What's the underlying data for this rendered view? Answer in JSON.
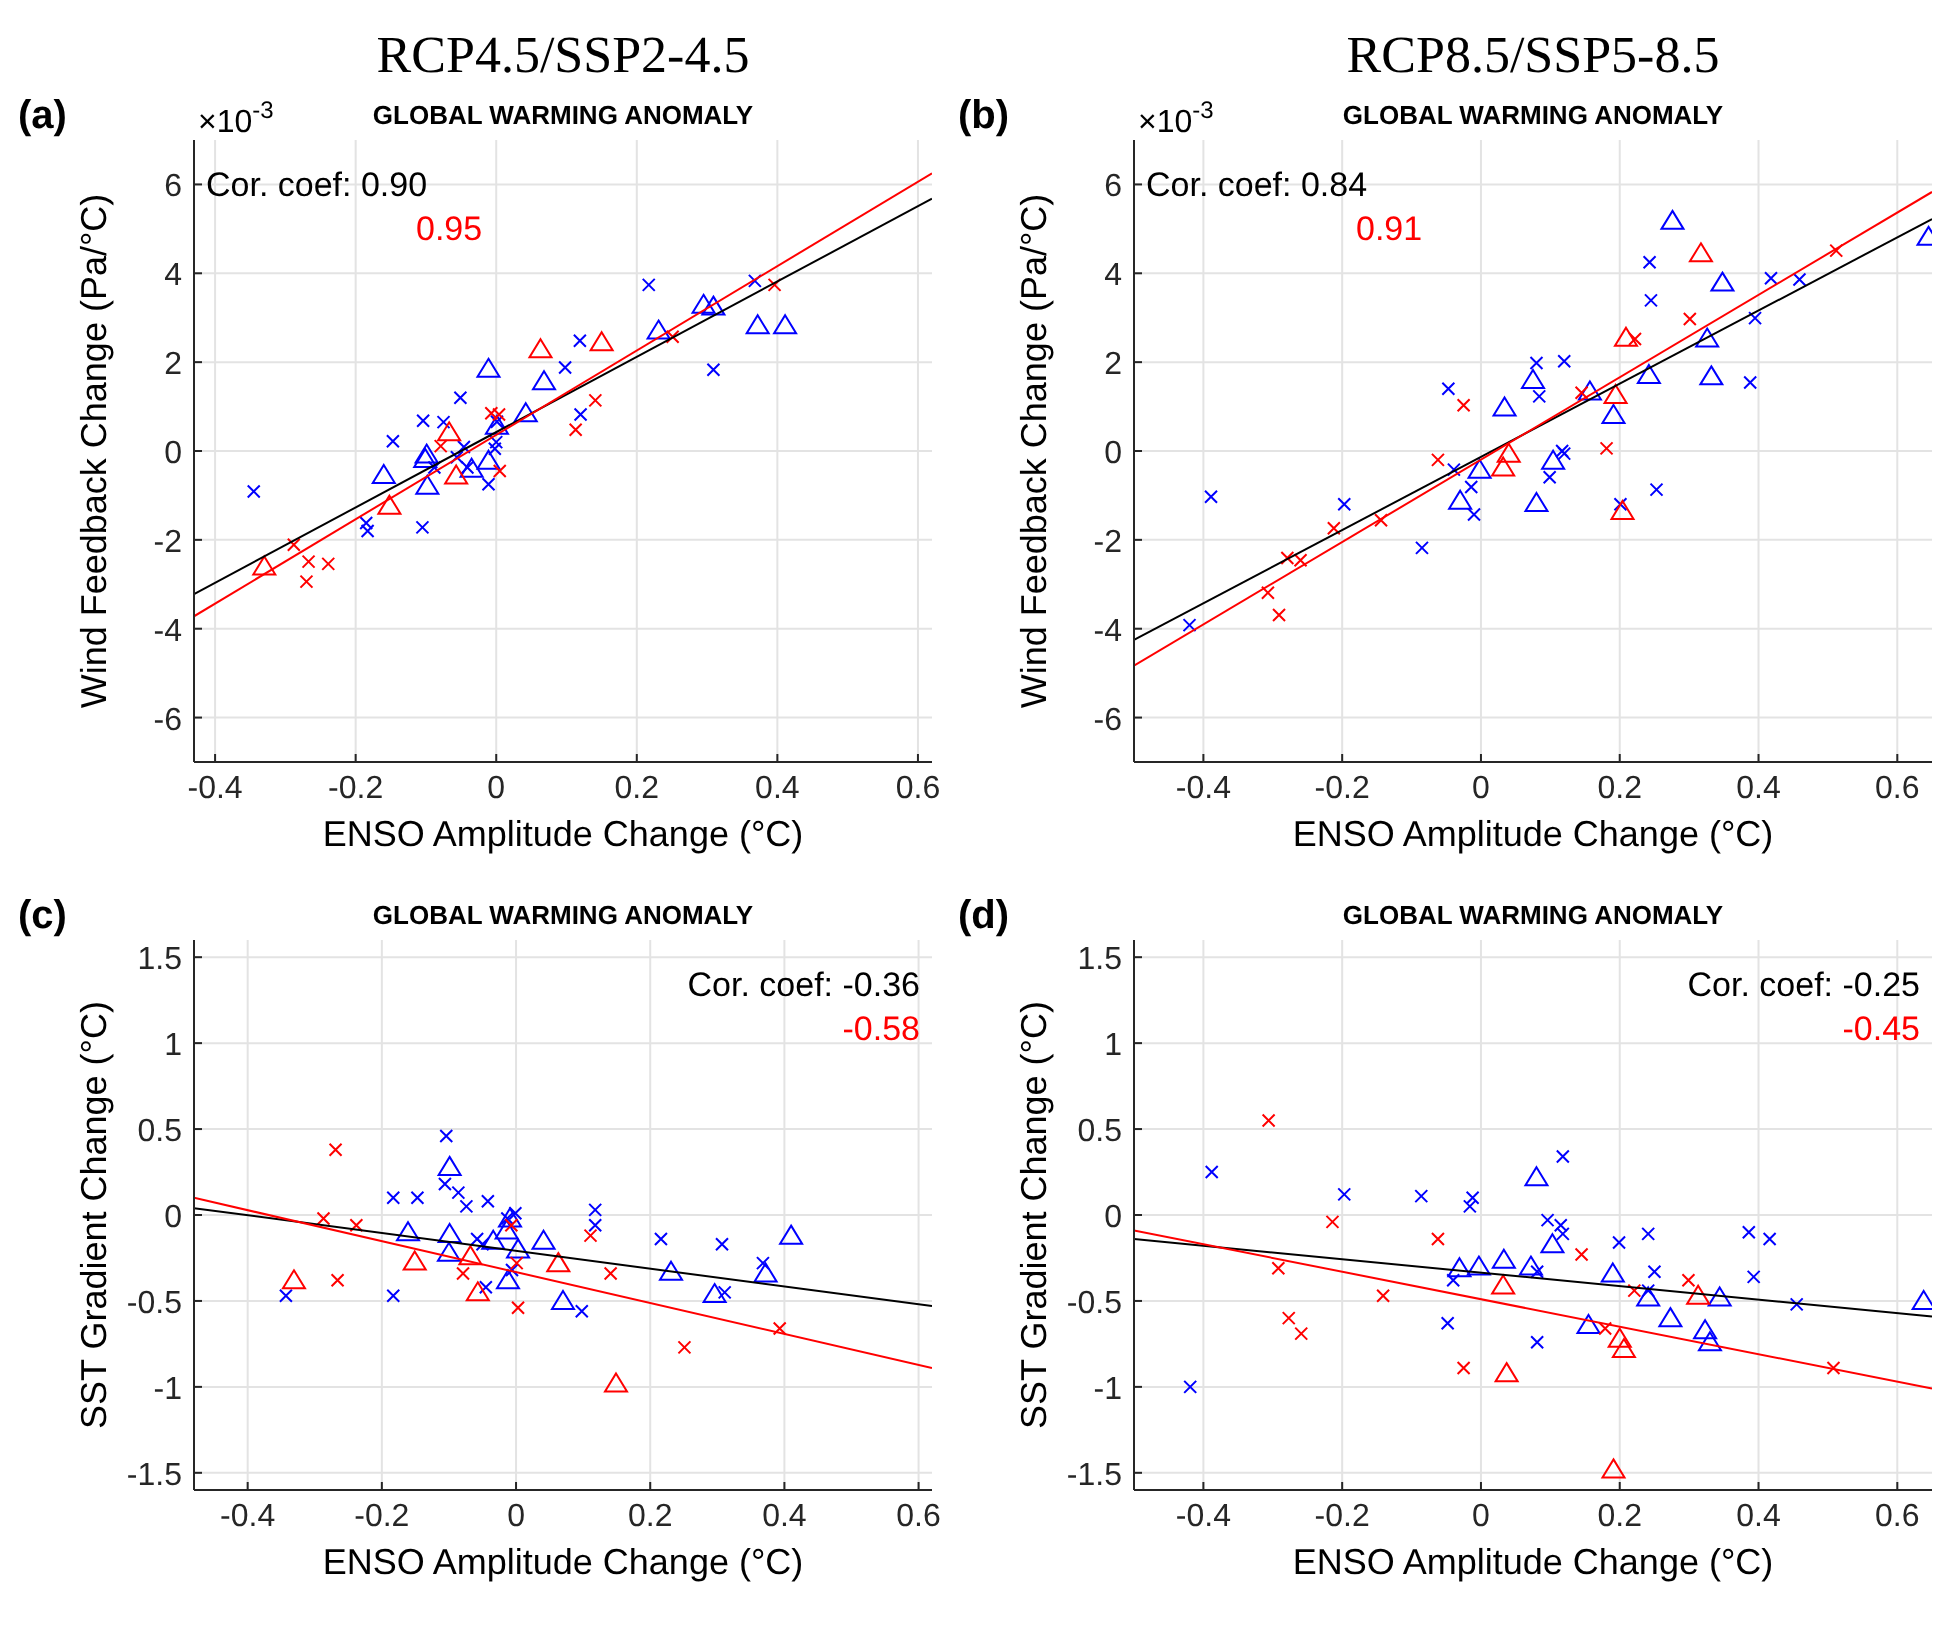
{
  "chart_data": [
    {
      "type": "scatter",
      "subtitle": "RCP4.5/SSP2-4.5",
      "title": "GLOBAL WARMING ANOMALY",
      "xlabel": "ENSO Amplitude Change (°C)",
      "ylabel": "Wind Feedback Change (Pa/°C)",
      "annotations": [
        "(a)",
        "Cor. coef: 0.90",
        "0.95",
        "×10$^{-3}$"
      ],
      "xlim": [
        -0.43,
        0.62
      ],
      "ylim": [
        -7,
        7
      ],
      "xticks": [
        -0.4,
        -0.2,
        0,
        0.2,
        0.4,
        0.6
      ],
      "yticks": [
        -6,
        -4,
        -2,
        0,
        2,
        4,
        6
      ],
      "grid": true,
      "series": [
        {
          "marker": "cross",
          "color": "#0000ff",
          "x": [
            -0.345,
            0.217,
            0.368,
            0.309,
            0.119,
            0.098,
            0.12,
            -0.051,
            -0.104,
            -0.075,
            -0.147,
            -0.046,
            -0.088,
            -0.056,
            -0.041,
            -0.002,
            0,
            -0.011,
            -0.185,
            -0.183,
            -0.105,
            0.001
          ],
          "values": [
            -0.91,
            3.74,
            3.83,
            1.83,
            2.48,
            1.88,
            0.82,
            1.2,
            0.68,
            0.65,
            0.22,
            0.09,
            -0.37,
            -0.14,
            -0.37,
            0.05,
            0.2,
            -0.75,
            -1.62,
            -1.8,
            -1.72,
            0.66
          ]
        },
        {
          "marker": "triangle",
          "color": "#0000ff",
          "x": [
            -0.011,
            0.068,
            0.042,
            0.001,
            -0.16,
            -0.099,
            -0.101,
            -0.098,
            -0.035,
            -0.011,
            0.295,
            0.231,
            0.372,
            0.411,
            0.309
          ],
          "values": [
            1.85,
            1.57,
            0.85,
            0.57,
            -0.54,
            -0.08,
            -0.18,
            -0.78,
            -0.4,
            -0.22,
            3.29,
            2.71,
            2.83,
            2.83,
            3.25
          ]
        },
        {
          "marker": "cross",
          "color": "#ff0000",
          "x": [
            -0.288,
            -0.267,
            -0.27,
            -0.239,
            -0.079,
            -0.007,
            0.004,
            0.005,
            0.113,
            0.141,
            0.251,
            0.396
          ],
          "values": [
            -2.11,
            -2.49,
            -2.94,
            -2.54,
            0.11,
            0.85,
            0.82,
            -0.45,
            0.48,
            1.14,
            2.57,
            3.74
          ]
        },
        {
          "marker": "triangle",
          "color": "#ff0000",
          "x": [
            -0.33,
            -0.152,
            -0.057,
            -0.067,
            0.063,
            0.15
          ],
          "values": [
            -2.6,
            -1.23,
            -0.55,
            0.42,
            2.29,
            2.45
          ]
        },
        {
          "type": "line",
          "marker": "none",
          "color": "#000000",
          "x": [
            -0.43,
            0.62
          ],
          "values": [
            -3.22,
            5.68
          ]
        },
        {
          "type": "line",
          "marker": "none",
          "color": "#ff0000",
          "x": [
            -0.43,
            0.62
          ],
          "values": [
            -3.72,
            6.25
          ]
        }
      ]
    },
    {
      "type": "scatter",
      "subtitle": "RCP8.5/SSP5-8.5",
      "title": "GLOBAL WARMING ANOMALY",
      "xlabel": "ENSO Amplitude Change (°C)",
      "ylabel": "Wind Feedback Change (Pa/°C)",
      "annotations": [
        "(b)",
        "Cor. coef: 0.84",
        "0.91",
        "×10$^{-3}$"
      ],
      "xlim": [
        -0.5,
        0.65
      ],
      "ylim": [
        -7,
        7
      ],
      "xticks": [
        -0.4,
        -0.2,
        0,
        0.2,
        0.4,
        0.6
      ],
      "yticks": [
        -6,
        -4,
        -2,
        0,
        2,
        4,
        6
      ],
      "grid": true,
      "series": [
        {
          "marker": "cross",
          "color": "#0000ff",
          "x": [
            -0.389,
            -0.42,
            -0.197,
            -0.085,
            -0.047,
            -0.039,
            -0.014,
            -0.01,
            0.08,
            0.084,
            0.12,
            0.117,
            0.12,
            0.099,
            0.201,
            0.243,
            0.245,
            0.253,
            0.388,
            0.395,
            0.418,
            0.459
          ],
          "values": [
            -1.03,
            -3.92,
            -1.2,
            -2.18,
            1.4,
            -0.42,
            -0.81,
            -1.43,
            1.98,
            1.23,
            2.02,
            0,
            -0.06,
            -0.59,
            -1.2,
            4.25,
            3.39,
            -0.87,
            1.54,
            2.99,
            3.89,
            3.86
          ]
        },
        {
          "marker": "triangle",
          "color": "#0000ff",
          "x": [
            0.276,
            0.348,
            0.326,
            0.332,
            0.242,
            0.191,
            0.157,
            0.075,
            0.034,
            0.08,
            -0.002,
            -0.03,
            0.104,
            0.645
          ],
          "values": [
            5.18,
            3.79,
            2.53,
            1.68,
            1.71,
            0.81,
            1.34,
            1.6,
            0.98,
            -1.17,
            -0.42,
            -1.12,
            -0.22,
            4.82
          ]
        },
        {
          "marker": "cross",
          "color": "#ff0000",
          "x": [
            -0.307,
            -0.291,
            -0.279,
            -0.26,
            -0.212,
            -0.144,
            -0.062,
            -0.025,
            0.145,
            0.181,
            0.222,
            0.301,
            0.512
          ],
          "values": [
            -3.19,
            -3.69,
            -2.41,
            -2.46,
            -1.74,
            -1.56,
            -0.2,
            1.03,
            1.31,
            0.06,
            2.52,
            2.97,
            4.51
          ]
        },
        {
          "marker": "triangle",
          "color": "#ff0000",
          "x": [
            0.032,
            0.04,
            0.194,
            0.209,
            0.204,
            0.317
          ],
          "values": [
            -0.37,
            -0.06,
            1.26,
            2.55,
            -1.35,
            4.45
          ]
        },
        {
          "type": "line",
          "marker": "none",
          "color": "#000000",
          "x": [
            -0.5,
            0.65
          ],
          "values": [
            -4.25,
            5.22
          ]
        },
        {
          "type": "line",
          "marker": "none",
          "color": "#ff0000",
          "x": [
            -0.5,
            0.65
          ],
          "values": [
            -4.83,
            5.83
          ]
        }
      ]
    },
    {
      "type": "scatter",
      "title": "GLOBAL WARMING ANOMALY",
      "xlabel": "ENSO Amplitude Change (°C)",
      "ylabel": "SST Gradient Change (°C)",
      "annotations": [
        "(c)",
        "Cor. coef: -0.36",
        "-0.58"
      ],
      "xlim": [
        -0.48,
        0.62
      ],
      "ylim": [
        -1.6,
        1.6
      ],
      "xticks": [
        -0.4,
        -0.2,
        0,
        0.2,
        0.4,
        0.6
      ],
      "yticks": [
        -1.5,
        -1,
        -0.5,
        0,
        0.5,
        1,
        1.5
      ],
      "grid": true,
      "series": [
        {
          "marker": "cross",
          "color": "#0000ff",
          "x": [
            -0.343,
            -0.183,
            -0.183,
            -0.147,
            -0.104,
            -0.106,
            -0.086,
            -0.074,
            -0.042,
            -0.058,
            -0.05,
            -0.045,
            -0.013,
            -0.001,
            -0.006,
            0.118,
            0.118,
            0.098,
            0.216,
            0.307,
            0.311,
            0.368
          ],
          "values": [
            -0.47,
            -0.47,
            0.1,
            0.1,
            0.46,
            0.18,
            0.13,
            0.05,
            0.08,
            -0.14,
            -0.17,
            -0.42,
            -0.02,
            0.01,
            -0.32,
            0.03,
            -0.06,
            -0.56,
            -0.14,
            -0.17,
            -0.45,
            -0.28
          ]
        },
        {
          "marker": "triangle",
          "color": "#0000ff",
          "x": [
            -0.099,
            -0.161,
            -0.099,
            -0.1,
            -0.034,
            -0.014,
            -0.009,
            0.003,
            -0.012,
            0.041,
            0.07,
            0.231,
            0.296,
            0.372,
            0.41
          ],
          "values": [
            0.28,
            -0.1,
            -0.11,
            -0.22,
            -0.15,
            -0.09,
            -0.02,
            -0.2,
            -0.38,
            -0.15,
            -0.5,
            -0.33,
            -0.46,
            -0.34,
            -0.12
          ]
        },
        {
          "marker": "cross",
          "color": "#ff0000",
          "x": [
            -0.269,
            -0.287,
            -0.238,
            -0.266,
            -0.079,
            -0.007,
            0.001,
            0.003,
            0.111,
            0.141,
            0.251,
            0.393
          ],
          "values": [
            0.38,
            -0.02,
            -0.06,
            -0.38,
            -0.34,
            -0.06,
            -0.28,
            -0.54,
            -0.12,
            -0.34,
            -0.77,
            -0.66
          ]
        },
        {
          "marker": "triangle",
          "color": "#ff0000",
          "x": [
            -0.331,
            -0.151,
            -0.068,
            -0.057,
            0.063,
            0.149
          ],
          "values": [
            -0.38,
            -0.27,
            -0.24,
            -0.45,
            -0.28,
            -0.98
          ]
        },
        {
          "type": "line",
          "marker": "none",
          "color": "#000000",
          "x": [
            -0.48,
            0.62
          ],
          "values": [
            0.04,
            -0.53
          ]
        },
        {
          "type": "line",
          "marker": "none",
          "color": "#ff0000",
          "x": [
            -0.48,
            0.62
          ],
          "values": [
            0.1,
            -0.89
          ]
        }
      ]
    },
    {
      "type": "scatter",
      "title": "GLOBAL WARMING ANOMALY",
      "xlabel": "ENSO Amplitude Change (°C)",
      "ylabel": "SST Gradient Change (°C)",
      "annotations": [
        "(d)",
        "Cor. coef: -0.25",
        "-0.45"
      ],
      "xlim": [
        -0.5,
        0.65
      ],
      "ylim": [
        -1.6,
        1.6
      ],
      "xticks": [
        -0.4,
        -0.2,
        0,
        0.2,
        0.4,
        0.6
      ],
      "yticks": [
        -1.5,
        -1,
        -0.5,
        0,
        0.5,
        1,
        1.5
      ],
      "grid": true,
      "series": [
        {
          "marker": "cross",
          "color": "#0000ff",
          "x": [
            -0.419,
            -0.388,
            -0.197,
            -0.086,
            -0.012,
            -0.016,
            -0.048,
            -0.04,
            0.081,
            0.081,
            0.118,
            0.096,
            0.115,
            0.118,
            0.199,
            0.241,
            0.25,
            0.241,
            0.386,
            0.393,
            0.416,
            0.455
          ],
          "values": [
            -1,
            0.25,
            0.12,
            0.11,
            0.1,
            0.05,
            -0.63,
            -0.38,
            -0.74,
            -0.33,
            0.34,
            -0.03,
            -0.06,
            -0.11,
            -0.16,
            -0.11,
            -0.33,
            -0.44,
            -0.1,
            -0.36,
            -0.14,
            -0.52
          ]
        },
        {
          "marker": "triangle",
          "color": "#0000ff",
          "x": [
            0.08,
            0.103,
            -0.031,
            -0.003,
            0.033,
            0.072,
            0.19,
            0.155,
            0.241,
            0.273,
            0.323,
            0.33,
            0.344,
            0.638
          ],
          "values": [
            0.22,
            -0.17,
            -0.31,
            -0.3,
            -0.26,
            -0.3,
            -0.34,
            -0.64,
            -0.48,
            -0.6,
            -0.67,
            -0.74,
            -0.48,
            -0.5
          ]
        },
        {
          "marker": "cross",
          "color": "#ff0000",
          "x": [
            -0.306,
            -0.292,
            -0.277,
            -0.259,
            -0.214,
            -0.141,
            -0.062,
            -0.025,
            0.145,
            0.179,
            0.221,
            0.299,
            0.508
          ],
          "values": [
            0.55,
            -0.31,
            -0.6,
            -0.69,
            -0.04,
            -0.47,
            -0.14,
            -0.89,
            -0.23,
            -0.66,
            -0.44,
            -0.38,
            -0.89
          ]
        },
        {
          "marker": "triangle",
          "color": "#ff0000",
          "x": [
            0.032,
            0.037,
            0.2,
            0.206,
            0.313,
            0.191
          ],
          "values": [
            -0.41,
            -0.92,
            -0.72,
            -0.78,
            -0.47,
            -1.48
          ]
        },
        {
          "type": "line",
          "marker": "none",
          "color": "#000000",
          "x": [
            -0.5,
            0.65
          ],
          "values": [
            -0.14,
            -0.59
          ]
        },
        {
          "type": "line",
          "marker": "none",
          "color": "#ff0000",
          "x": [
            -0.5,
            0.65
          ],
          "values": [
            -0.09,
            -1.01
          ]
        }
      ]
    }
  ]
}
